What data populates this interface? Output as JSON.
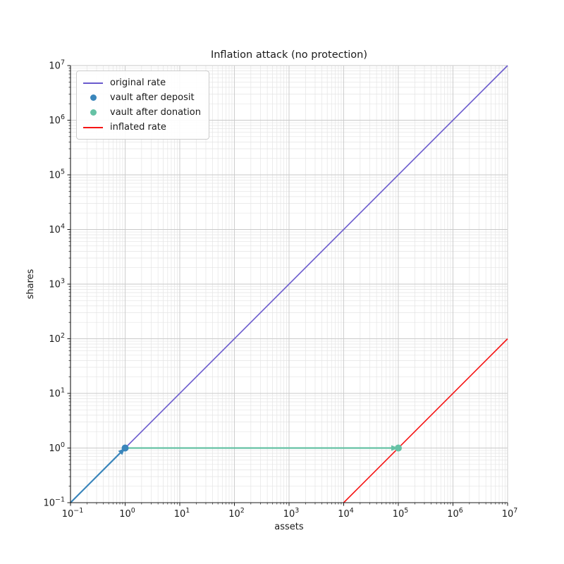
{
  "chart_data": {
    "type": "line",
    "title": "Inflation attack (no protection)",
    "xlabel": "assets",
    "ylabel": "shares",
    "xscale": "log",
    "yscale": "log",
    "xlim": [
      0.1,
      10000000
    ],
    "ylim": [
      0.1,
      10000000
    ],
    "x_tick_exponents": [
      -1,
      0,
      1,
      2,
      3,
      4,
      5,
      6,
      7
    ],
    "y_tick_exponents": [
      -1,
      0,
      1,
      2,
      3,
      4,
      5,
      6,
      7
    ],
    "grid": true,
    "grid_major_color": "#c9c9c9",
    "grid_minor_color": "#e4e4e4",
    "spine_color": "#1a1a1a",
    "legend_position": "upper left",
    "series": [
      {
        "name": "original rate",
        "kind": "line",
        "color": "#6a5acd",
        "width": 1.6,
        "points": [
          [
            0.1,
            0.1
          ],
          [
            10000000,
            10000000
          ]
        ]
      },
      {
        "name": "inflated rate",
        "kind": "line",
        "color": "#f51414",
        "width": 1.6,
        "points": [
          [
            10000,
            0.1
          ],
          [
            10000000,
            100
          ]
        ]
      },
      {
        "name": "vault after deposit",
        "kind": "scatter",
        "color": "#3a86bb",
        "radius": 5,
        "points": [
          [
            1,
            1
          ]
        ]
      },
      {
        "name": "vault after donation",
        "kind": "scatter",
        "color": "#66c2a5",
        "radius": 5,
        "points": [
          [
            100000,
            1
          ]
        ]
      }
    ],
    "annotations": [
      {
        "name": "deposit-arrow",
        "kind": "arrow",
        "color": "#3a86bb",
        "width": 2.2,
        "from": [
          0.1,
          0.1
        ],
        "to": [
          1,
          1
        ]
      },
      {
        "name": "donation-arrow",
        "kind": "arrow",
        "color": "#66c2a5",
        "width": 2.2,
        "from": [
          1,
          1
        ],
        "to": [
          100000,
          1
        ]
      }
    ],
    "legend": [
      {
        "label": "original rate",
        "swatch": "line",
        "color": "#6a5acd"
      },
      {
        "label": "vault after deposit",
        "swatch": "dot",
        "color": "#3a86bb"
      },
      {
        "label": "vault after donation",
        "swatch": "dot",
        "color": "#66c2a5"
      },
      {
        "label": "inflated rate",
        "swatch": "line",
        "color": "#f51414"
      }
    ]
  }
}
